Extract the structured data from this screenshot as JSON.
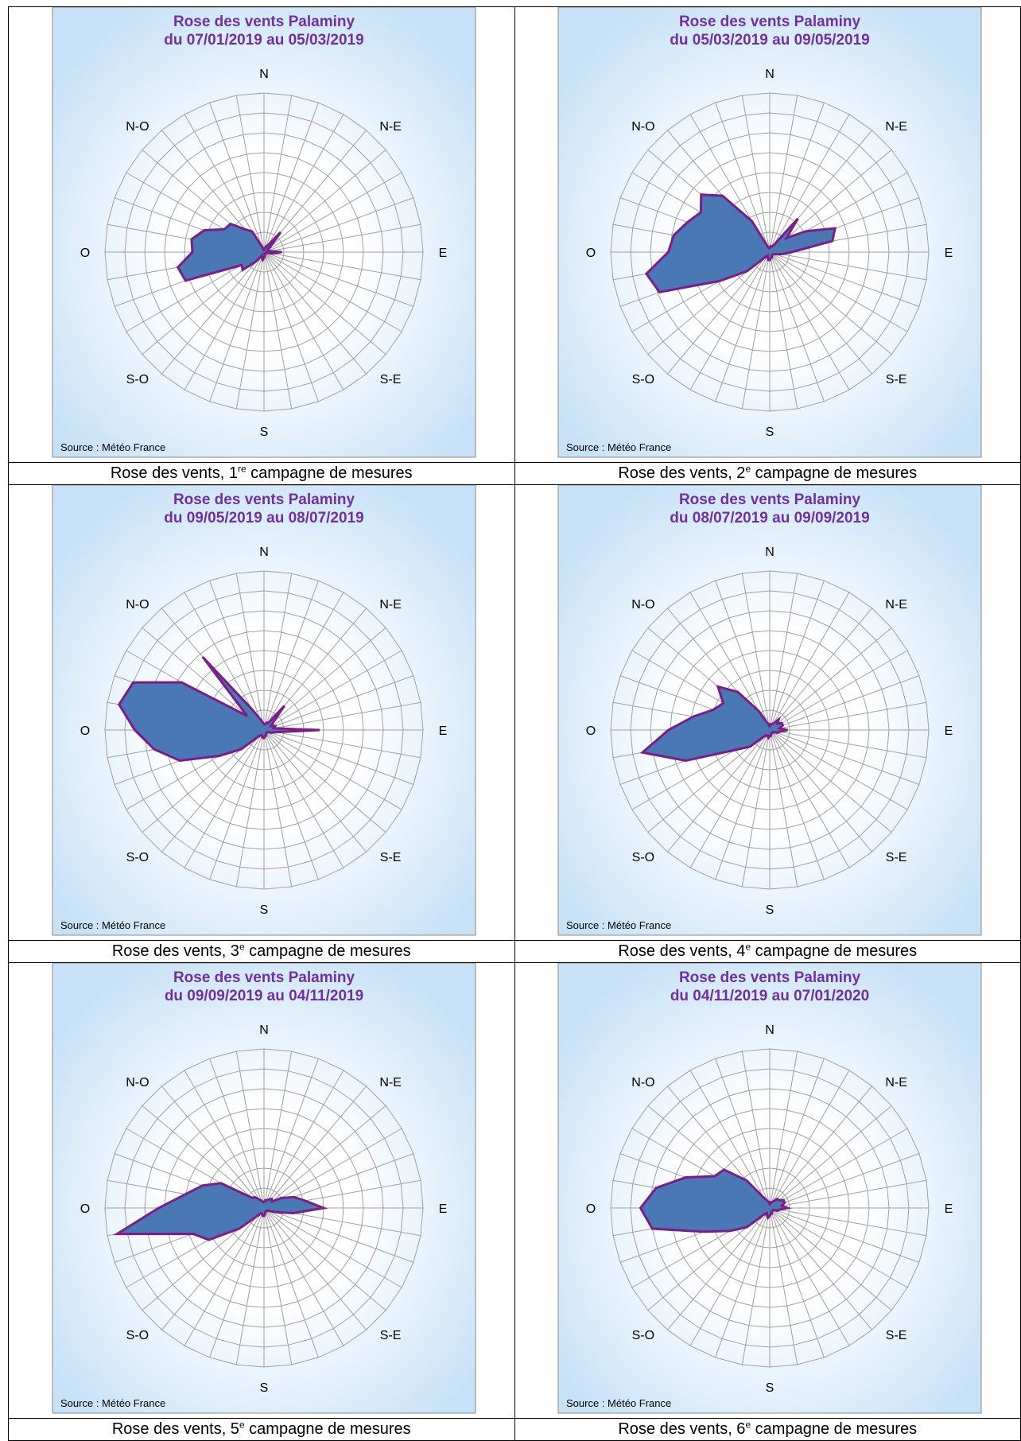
{
  "directions": [
    "N",
    "N-E",
    "E",
    "S-E",
    "S",
    "S-O",
    "O",
    "N-O"
  ],
  "source_label": "Source : Météo France",
  "colors": {
    "fill": "#4a78b5",
    "stroke": "#7a1d86",
    "title": "#7030a0",
    "bg_outer": "#c7e2f7",
    "bg_inner": "#ffffff",
    "grid": "#a0a0a0"
  },
  "chart_data": [
    {
      "type": "radar",
      "title": "Rose des vents Palaminy",
      "subtitle": "du 07/01/2019 au 05/03/2019",
      "caption": {
        "prefix": "Rose des vents, 1",
        "sup": "re",
        "suffix": " campagne de mesures"
      },
      "categories_count": 36,
      "grid_rings": 8,
      "ylim": [
        0,
        8
      ],
      "values": [
        0.1,
        0.2,
        0.3,
        0.4,
        1.3,
        0.4,
        0.2,
        0.2,
        0.3,
        0.9,
        0.4,
        0.1,
        0.1,
        0.1,
        0.1,
        0.1,
        0.1,
        0.2,
        0.3,
        0.4,
        0.3,
        0.2,
        0.6,
        1.4,
        1.3,
        4.2,
        4.4,
        3.6,
        3.7,
        3.2,
        2.3,
        2.2,
        1.5,
        1.2,
        0.3,
        0.1
      ]
    },
    {
      "type": "radar",
      "title": "Rose des vents Palaminy",
      "subtitle": "du 05/03/2019 au 09/05/2019",
      "caption": {
        "prefix": "Rose des vents, 2",
        "sup": "e",
        "suffix": " campagne de mesures"
      },
      "categories_count": 36,
      "grid_rings": 8,
      "ylim": [
        0,
        8
      ],
      "values": [
        0.2,
        0.3,
        0.3,
        0.4,
        2.2,
        1.1,
        2.1,
        3.5,
        3.2,
        1.1,
        0.6,
        0.3,
        0.2,
        0.2,
        0.2,
        0.2,
        0.3,
        0.3,
        0.4,
        0.4,
        0.3,
        0.2,
        0.3,
        1.5,
        2.9,
        5.9,
        6.3,
        5.1,
        4.9,
        4.4,
        4.0,
        4.5,
        3.7,
        1.8,
        0.3,
        0.2
      ]
    },
    {
      "type": "radar",
      "title": "Rose des vents Palaminy",
      "subtitle": "du 09/05/2019 au 08/07/2019",
      "caption": {
        "prefix": "Rose des vents, 3",
        "sup": "e",
        "suffix": " campagne de mesures"
      },
      "categories_count": 36,
      "grid_rings": 8,
      "ylim": [
        0,
        8
      ],
      "values": [
        0.3,
        0.3,
        0.4,
        0.4,
        1.6,
        0.6,
        0.4,
        0.6,
        0.5,
        2.8,
        0.6,
        0.4,
        0.2,
        0.2,
        0.2,
        0.2,
        0.3,
        0.3,
        0.4,
        0.4,
        0.3,
        0.3,
        0.4,
        1.5,
        2.6,
        4.5,
        5.6,
        6.5,
        7.4,
        7.0,
        4.8,
        1.1,
        4.8,
        1.2,
        0.6,
        0.4
      ]
    },
    {
      "type": "radar",
      "title": "Rose des vents Palaminy",
      "subtitle": "du 08/07/2019 au 09/09/2019",
      "caption": {
        "prefix": "Rose des vents, 4",
        "sup": "e",
        "suffix": " campagne de mesures"
      },
      "categories_count": 36,
      "grid_rings": 8,
      "ylim": [
        0,
        8
      ],
      "values": [
        0.2,
        0.3,
        0.3,
        0.4,
        0.7,
        0.5,
        0.7,
        0.7,
        0.5,
        0.9,
        0.5,
        0.4,
        0.2,
        0.2,
        0.2,
        0.2,
        0.2,
        0.3,
        0.3,
        0.4,
        0.3,
        0.3,
        0.4,
        1.3,
        2.0,
        4.5,
        6.5,
        5.1,
        3.9,
        3.0,
        2.7,
        3.4,
        2.5,
        1.1,
        0.4,
        0.3
      ]
    },
    {
      "type": "radar",
      "title": "Rose des vents Palaminy",
      "subtitle": "du 09/09/2019 au 04/11/2019",
      "caption": {
        "prefix": "Rose des vents, 5",
        "sup": "e",
        "suffix": " campagne de mesures"
      },
      "categories_count": 36,
      "grid_rings": 8,
      "ylim": [
        0,
        8
      ],
      "values": [
        0.3,
        0.4,
        0.4,
        0.5,
        0.6,
        0.5,
        1.0,
        1.6,
        2.1,
        3.0,
        1.5,
        0.6,
        0.3,
        0.2,
        0.2,
        0.2,
        0.2,
        0.3,
        0.4,
        0.4,
        0.3,
        0.3,
        0.5,
        1.6,
        3.2,
        3.8,
        7.5,
        5.3,
        4.0,
        3.3,
        2.5,
        0.8,
        0.7,
        0.5,
        0.4,
        0.3
      ]
    },
    {
      "type": "radar",
      "title": "Rose des vents Palaminy",
      "subtitle": "du 04/11/2019 au 07/01/2020",
      "caption": {
        "prefix": "Rose des vents, 6",
        "sup": "e",
        "suffix": " campagne de mesures"
      },
      "categories_count": 36,
      "grid_rings": 8,
      "ylim": [
        0,
        8
      ],
      "values": [
        0.2,
        0.3,
        0.3,
        0.4,
        0.6,
        0.6,
        0.8,
        0.8,
        0.6,
        0.9,
        0.5,
        0.4,
        0.2,
        0.2,
        0.2,
        0.2,
        0.3,
        0.3,
        0.4,
        0.5,
        0.4,
        0.3,
        0.4,
        1.5,
        2.3,
        3.5,
        6.0,
        6.5,
        5.8,
        4.5,
        3.2,
        3.0,
        1.8,
        0.6,
        0.4,
        0.3
      ]
    }
  ]
}
